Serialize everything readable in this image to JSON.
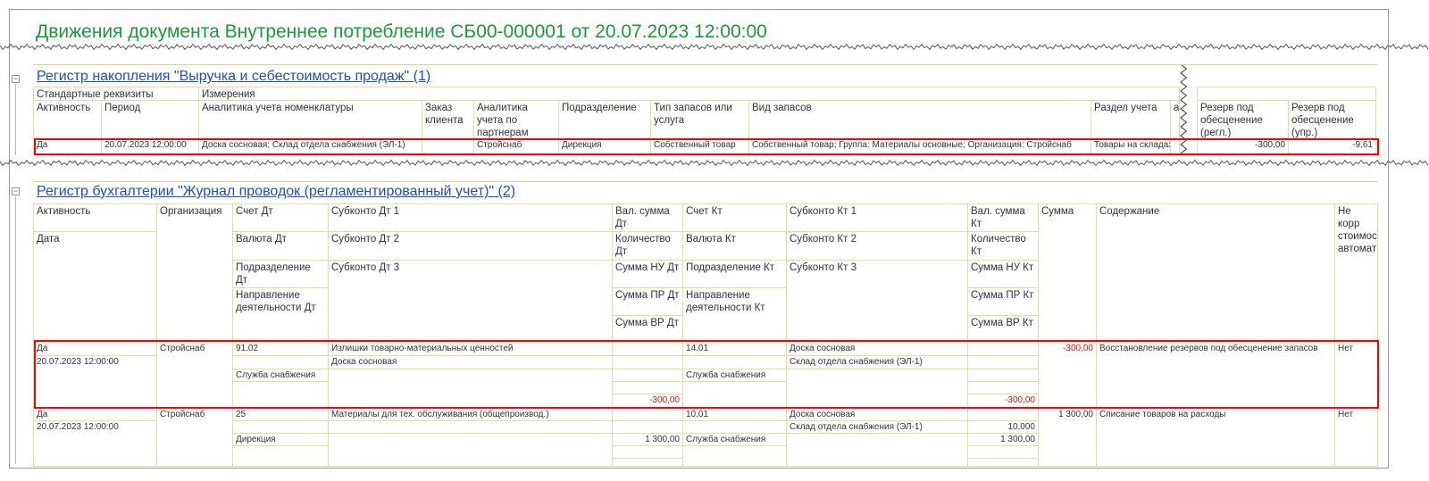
{
  "document": {
    "title": "Движения документа Внутреннее потребление СБ00-000001 от 20.07.2023 12:00:00"
  },
  "register1": {
    "title": "Регистр накопления \"Выручка и себестоимость продаж\" (1)",
    "group_std": "Стандартные реквизиты",
    "group_dims": "Измерения",
    "headers": [
      "Активность",
      "Период",
      "Аналитика учета номенклатуры",
      "Заказ клиента",
      "Аналитика учета по партнерам",
      "Подразделение",
      "Тип запасов или услуга",
      "Вид запасов",
      "Раздел учета",
      "а",
      "Резерв под обесценение (регл.)",
      "Резерв под обесценение (упр.)"
    ],
    "row": [
      "Да",
      "20.07.2023 12:00:00",
      "Доска сосновая; Склад отдела снабжения (ЭЛ-1)",
      "",
      "Стройснаб",
      "Дирекция",
      "Собственный товар",
      "Собственный товар; Группа: Материалы основные; Организация: Стройснаб",
      "Товары на складах",
      "",
      "-300,00",
      "-9,61"
    ]
  },
  "register2": {
    "title": "Регистр бухгалтерии \"Журнал проводок (регламентированный учет)\" (2)",
    "headers": {
      "activity": "Активность",
      "date": "Дата",
      "org": "Организация",
      "acc_dt": [
        "Счет Дт",
        "Валюта Дт",
        "Подразделение Дт",
        "Направление деятельности Дт"
      ],
      "sub_dt": [
        "Субконто Дт 1",
        "Субконто Дт 2",
        "Субконто Дт 3"
      ],
      "val_dt": [
        "Вал. сумма Дт",
        "Количество Дт",
        "Сумма НУ Дт",
        "Сумма ПР Дт",
        "Сумма ВР Дт"
      ],
      "acc_kt": [
        "Счет Кт",
        "Валюта Кт",
        "Подразделение Кт",
        "Направление деятельности Кт"
      ],
      "sub_kt": [
        "Субконто Кт 1",
        "Субконто Кт 2",
        "Субконто Кт 3"
      ],
      "val_kt": [
        "Вал. сумма Кт",
        "Количество Кт",
        "Сумма НУ Кт",
        "Сумма ПР Кт",
        "Сумма ВР Кт"
      ],
      "sum": "Сумма",
      "content": "Содержание",
      "no_corr": "Не корр стоимос автомат"
    },
    "rows": [
      {
        "activity": "Да",
        "date": "20.07.2023 12:00:00",
        "org": "Стройснаб",
        "acc_dt": [
          "91.02",
          "",
          "Служба снабжения",
          ""
        ],
        "sub_dt": [
          "Излишки товарно-материальных ценностей",
          "Доска сосновая",
          ""
        ],
        "val_dt": [
          "",
          "",
          "",
          "",
          "-300,00"
        ],
        "acc_kt": [
          "14.01",
          "",
          "Служба снабжения",
          ""
        ],
        "sub_kt": [
          "Доска сосновая",
          "Склад отдела снабжения (ЭЛ-1)",
          ""
        ],
        "val_kt": [
          "",
          "",
          "",
          "",
          "-300,00"
        ],
        "sum": "-300,00",
        "content": "Восстановление резервов под обесценение запасов",
        "no_corr": "Нет"
      },
      {
        "activity": "Да",
        "date": "20.07.2023 12:00:00",
        "org": "Стройснаб",
        "acc_dt": [
          "25",
          "",
          "Дирекция",
          ""
        ],
        "sub_dt": [
          "Материалы для тех. обслуживания (общепроизвод.)",
          "",
          ""
        ],
        "val_dt": [
          "",
          "",
          "1 300,00",
          "",
          ""
        ],
        "acc_kt": [
          "10.01",
          "",
          "Служба снабжения",
          ""
        ],
        "sub_kt": [
          "Доска сосновая",
          "Склад отдела снабжения (ЭЛ-1)",
          ""
        ],
        "val_kt": [
          "",
          "10,000",
          "1 300,00",
          "",
          ""
        ],
        "sum": "1 300,00",
        "content": "Списание товаров на расходы",
        "no_corr": "Нет"
      }
    ]
  },
  "colors": {
    "title": "#1a9a3a",
    "link": "#1f4fbf",
    "highlight": "#ff0000",
    "negative": "#e01010",
    "grid": "#e2dda6"
  }
}
